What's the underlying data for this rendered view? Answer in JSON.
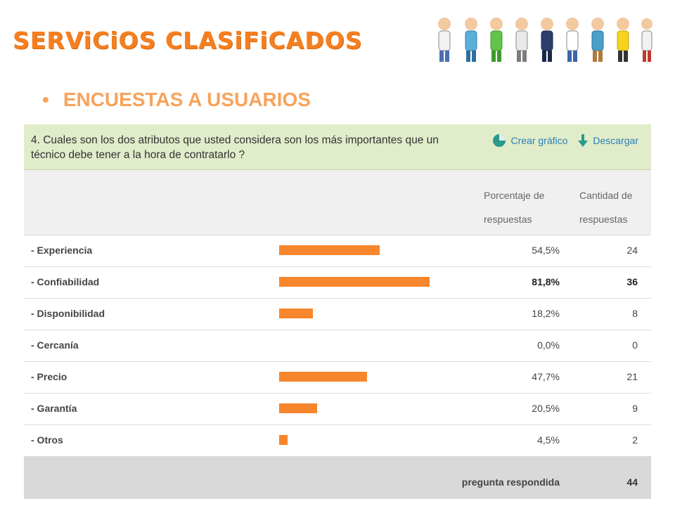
{
  "brand": {
    "title": "SERViCiOS CLASiFiCADOS"
  },
  "section": {
    "bullet": "•",
    "title": "ENCUESTAS A USUARIOS"
  },
  "colors": {
    "accent": "#f57f20",
    "bar": "#f7862c",
    "header_bg": "#e0ecca",
    "link": "#2a7fb8"
  },
  "question": {
    "text": "4. Cuales son los dos atributos que usted considera son los más importantes que un técnico debe tener a la hora de contratarlo ?",
    "actions": [
      {
        "label": "Crear gráfico",
        "icon": "pie-chart-icon"
      },
      {
        "label": "Descargar",
        "icon": "download-arrow-icon"
      }
    ]
  },
  "columns": {
    "percent": "Porcentaje de respuestas",
    "count": "Cantidad de respuestas"
  },
  "rows": [
    {
      "label": "- Experiencia",
      "percent_text": "54,5%",
      "percent": 0.545,
      "count": "24"
    },
    {
      "label": "- Confiabilidad",
      "percent_text": "81,8%",
      "percent": 0.818,
      "count": "36"
    },
    {
      "label": "- Disponibilidad",
      "percent_text": "18,2%",
      "percent": 0.182,
      "count": "8"
    },
    {
      "label": "- Cercanía",
      "percent_text": "0,0%",
      "percent": 0.0,
      "count": "0"
    },
    {
      "label": "- Precio",
      "percent_text": "47,7%",
      "percent": 0.477,
      "count": "21"
    },
    {
      "label": "- Garantía",
      "percent_text": "20,5%",
      "percent": 0.205,
      "count": "9"
    },
    {
      "label": "- Otros",
      "percent_text": "4,5%",
      "percent": 0.045,
      "count": "2"
    }
  ],
  "footer": {
    "label": "pregunta respondida",
    "total": "44"
  }
}
